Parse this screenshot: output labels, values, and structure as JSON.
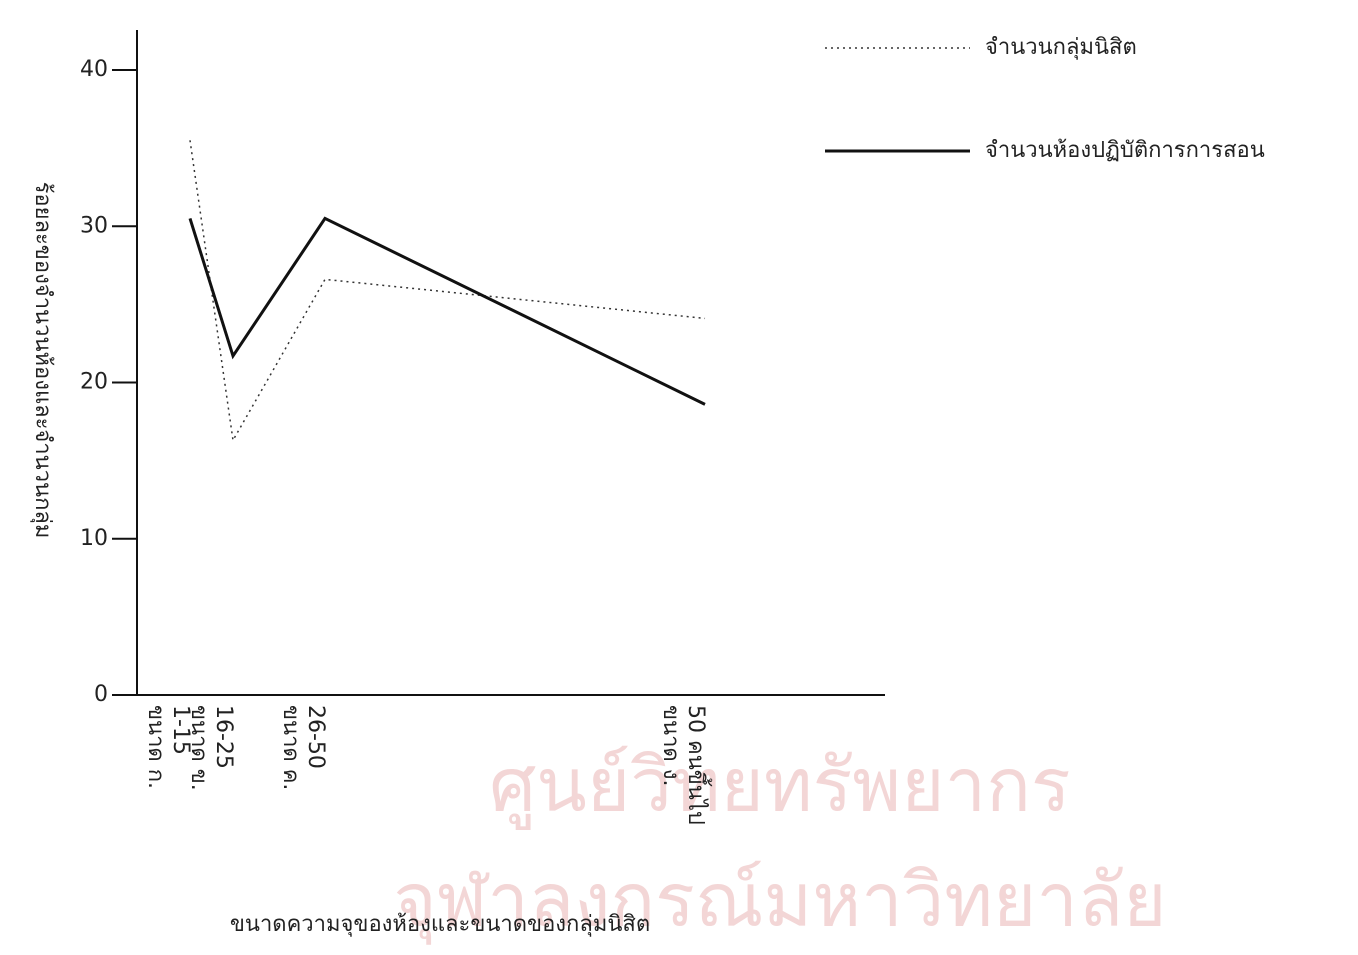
{
  "chart_data": {
    "type": "line",
    "watermark": [
      "ศูนย์วิทยทรัพยากร",
      "จุฬาลงกรณ์มหาวิทยาลัย"
    ],
    "x_label": "ขนาดความจุของห้องและขนาดของกลุ่มนิสิต",
    "y_label": "ร้อยละของจำนวนห้องและจำนวนกลุ่ม",
    "categories": [
      "ขนาด ก.",
      "ขนาด ข.",
      "ขนาด ค.",
      "ขนาด ง."
    ],
    "category_ranges": [
      "1-15",
      "16-25",
      "26-50",
      "50 คนขึ้นไป"
    ],
    "ylim": [
      0,
      40
    ],
    "yticks": [
      0,
      10,
      20,
      30,
      40
    ],
    "series": [
      {
        "name": "จำนวนกลุ่มนิสิต",
        "color": "#333333",
        "line_style": "dotted",
        "values": [
          35.5,
          16.3,
          26.6,
          24.1
        ]
      },
      {
        "name": "จำนวนห้องปฏิบัติการการสอน",
        "color": "#111111",
        "line_style": "solid",
        "values": [
          30.5,
          21.7,
          30.5,
          18.6
        ]
      }
    ]
  }
}
